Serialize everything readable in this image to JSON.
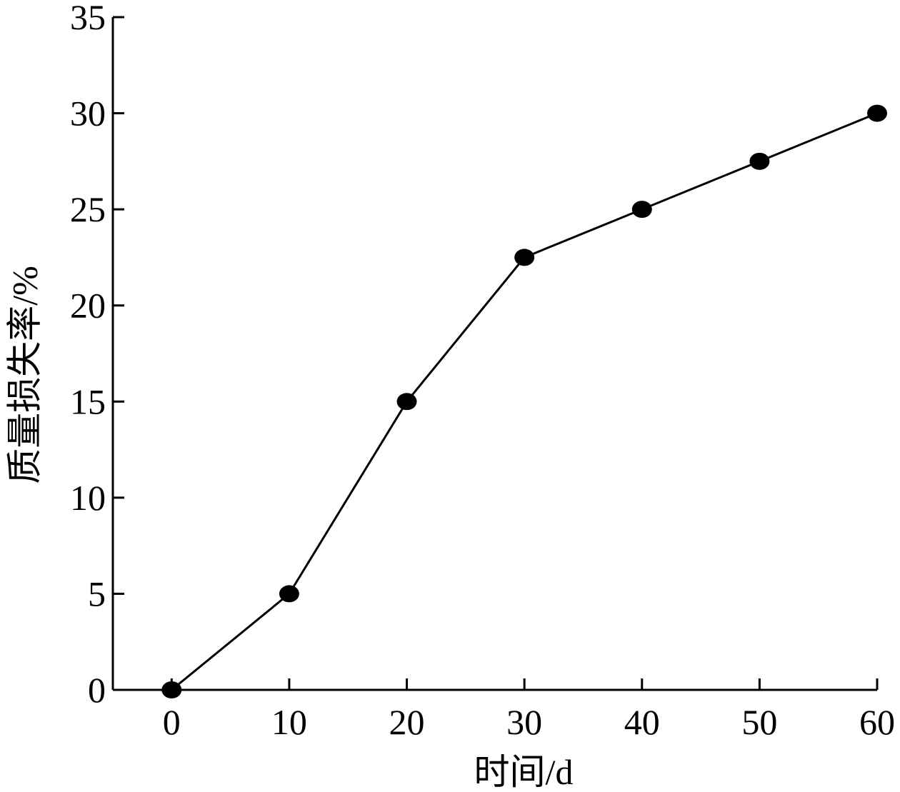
{
  "chart_data": {
    "type": "line",
    "title": "",
    "xlabel": "时间/d",
    "ylabel": "质量损失率/%",
    "x": [
      0,
      10,
      20,
      30,
      40,
      50,
      60
    ],
    "series": [
      {
        "values": [
          0,
          5,
          15,
          22.5,
          25,
          27.5,
          30
        ]
      }
    ],
    "xticks": [
      "0",
      "10",
      "20",
      "30",
      "40",
      "50",
      "60"
    ],
    "yticks": [
      "0",
      "5",
      "10",
      "15",
      "20",
      "25",
      "30",
      "35"
    ],
    "xlim": [
      -5,
      60
    ],
    "ylim": [
      0,
      35
    ],
    "grid": false,
    "legend": "none",
    "marker": "filled-circle",
    "line_color": "#000000"
  }
}
